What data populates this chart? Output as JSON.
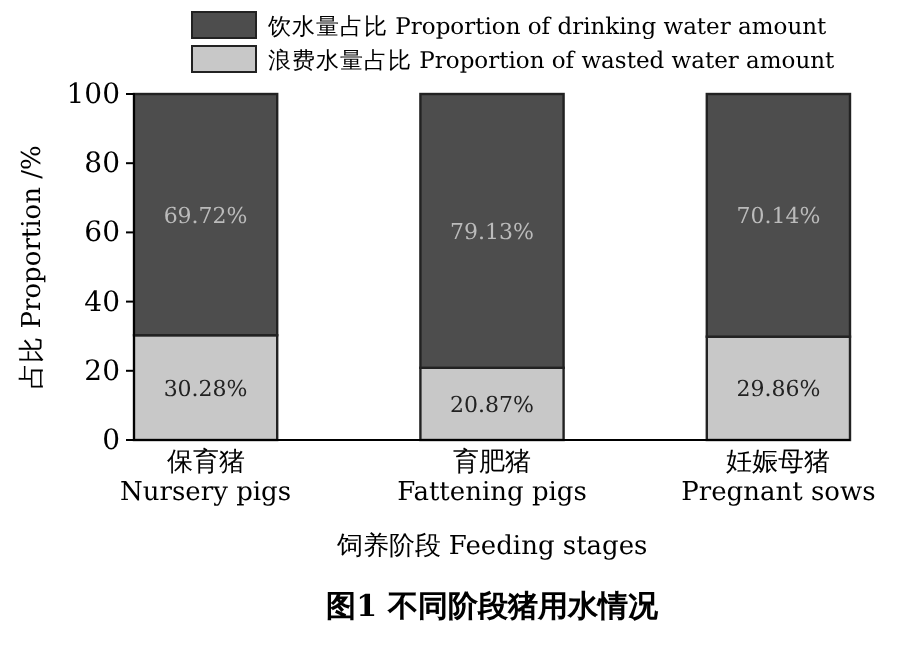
{
  "chart_data": {
    "type": "bar",
    "title": "图1 不同阶段猪用水情况",
    "xlabel": "饲养阶段 Feeding stages",
    "ylabel": "占比 Proportion /%",
    "categories": [
      "保育猪\nNursery pigs",
      "育肥猪\nFattening pigs",
      "妊娠母猪\nPregnant sows"
    ],
    "stacked": true,
    "series": [
      {
        "name": "浪费水量占比 Proportion of wasted water amount",
        "color": "#c8c8c8",
        "values": [
          30.28,
          20.87,
          29.86
        ],
        "value_labels": [
          "30.28%",
          "20.87%",
          "29.86%"
        ]
      },
      {
        "name": "饮水量占比 Proportion of drinking water amount",
        "color": "#4d4d4d",
        "values": [
          69.72,
          79.13,
          70.14
        ],
        "value_labels": [
          "69.72%",
          "79.13%",
          "70.14%"
        ]
      }
    ],
    "ylim": [
      0,
      100
    ],
    "yticks": [
      0,
      20,
      40,
      60,
      80,
      100
    ],
    "grid": false,
    "legend": "top"
  }
}
